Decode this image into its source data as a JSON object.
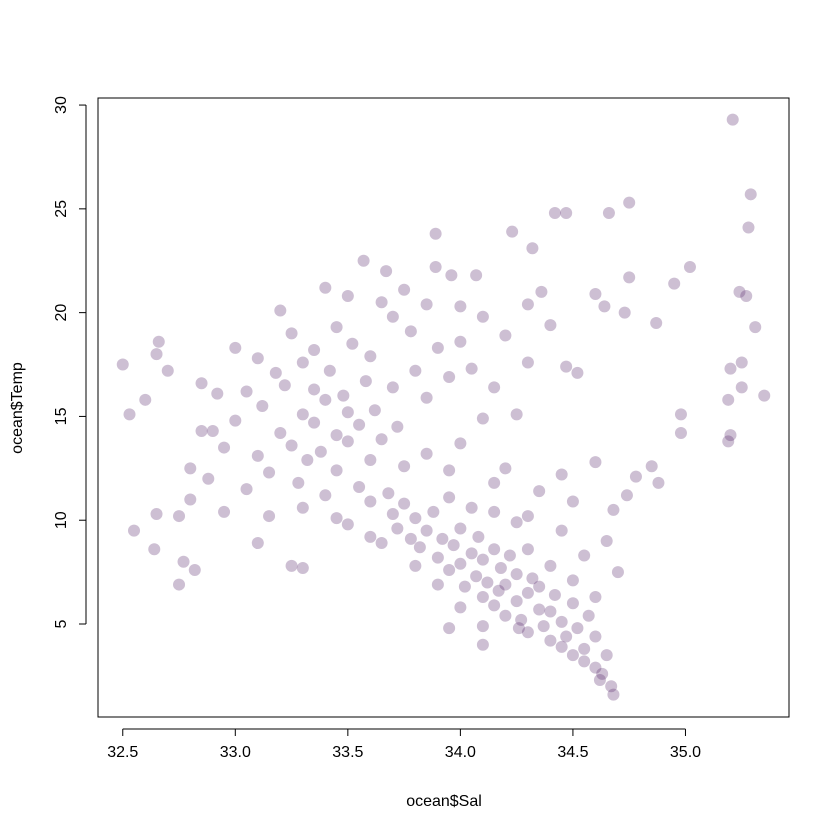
{
  "chart_data": {
    "type": "scatter",
    "x_label": "ocean$Sal",
    "y_label": "ocean$Temp",
    "color": "#5b2a6e",
    "xlim": [
      32.39,
      35.46
    ],
    "ylim": [
      0.52,
      30.34
    ],
    "xticks": [
      32.5,
      {
        "value": 33,
        "label": "33.0"
      },
      33.5,
      {
        "value": 34,
        "label": "34.0"
      },
      34.5,
      {
        "value": 35,
        "label": "35.0"
      }
    ],
    "yticks": [
      5,
      10,
      15,
      20,
      25,
      30
    ],
    "x": [
      32.5,
      32.53,
      32.55,
      32.6,
      32.64,
      32.65,
      32.66,
      32.65,
      32.7,
      32.75,
      32.77,
      32.82,
      32.85,
      32.75,
      32.8,
      32.9,
      33.0,
      33.1,
      33.2,
      33.25,
      33.3,
      33.4,
      33.5,
      33.57,
      33.67,
      33.89,
      33.89,
      33.96,
      34.07,
      34.23,
      34.32,
      34.42,
      34.47,
      34.66,
      34.75,
      34.75,
      34.36,
      34.3,
      34.6,
      34.64,
      34.73,
      34.87,
      35.02,
      34.95,
      35.21,
      35.29,
      35.28,
      35.24,
      35.27,
      35.31,
      35.35,
      35.25,
      35.2,
      35.19,
      35.25,
      35.2,
      35.19,
      34.98,
      34.98,
      34.52,
      34.47,
      34.88,
      34.85,
      34.78,
      34.74,
      34.6,
      34.68,
      34.68,
      34.67,
      34.62,
      34.55,
      33.95,
      34.1,
      34.26,
      33.0,
      33.05,
      33.1,
      33.12,
      33.15,
      33.18,
      33.2,
      33.22,
      33.25,
      33.28,
      33.3,
      33.3,
      33.32,
      33.35,
      33.35,
      33.38,
      33.4,
      33.4,
      33.42,
      33.45,
      33.45,
      33.48,
      33.5,
      33.5,
      33.52,
      33.55,
      33.55,
      33.58,
      33.6,
      33.6,
      33.62,
      33.65,
      33.68,
      33.7,
      33.72,
      33.75,
      33.78,
      33.8,
      33.85,
      33.9,
      33.95,
      34.0,
      34.05,
      34.1,
      34.15,
      33.45,
      33.35,
      33.25,
      33.1,
      32.95,
      32.92,
      32.88,
      32.85,
      32.8,
      32.95,
      33.05,
      33.15,
      33.3,
      33.45,
      33.6,
      33.7,
      33.75,
      33.65,
      33.85,
      34.0,
      34.2,
      34.3,
      34.4,
      34.25,
      34.1,
      34.0,
      34.2,
      34.35,
      34.5,
      34.45,
      34.15,
      33.95,
      33.85,
      34.05,
      34.3,
      33.7,
      33.72,
      33.75,
      33.78,
      33.8,
      33.82,
      33.85,
      33.88,
      33.9,
      33.92,
      33.95,
      33.97,
      34.0,
      34.0,
      34.02,
      34.05,
      34.07,
      34.08,
      34.1,
      34.1,
      34.12,
      34.15,
      34.15,
      34.17,
      34.18,
      34.2,
      34.2,
      34.22,
      34.25,
      34.25,
      34.27,
      34.3,
      34.3,
      34.32,
      34.35,
      34.35,
      34.37,
      34.4,
      34.4,
      34.42,
      34.45,
      34.45,
      34.47,
      34.5,
      34.5,
      34.52,
      34.55,
      34.57,
      34.6,
      34.6,
      34.63,
      34.65,
      33.65,
      33.8,
      33.9,
      34.0,
      34.1,
      33.6,
      33.5,
      34.3,
      34.4,
      34.5,
      34.6,
      34.55,
      34.65,
      34.7,
      34.45,
      34.25,
      34.15,
      33.95
    ],
    "values": [
      17.5,
      15.1,
      9.5,
      15.8,
      8.6,
      18,
      18.6,
      10.3,
      17.2,
      6.9,
      8,
      7.6,
      16.6,
      10.2,
      12.5,
      14.3,
      18.3,
      8.9,
      20.1,
      7.8,
      7.7,
      21.2,
      20.8,
      22.5,
      22,
      23.8,
      22.2,
      21.8,
      21.8,
      23.9,
      23.1,
      24.8,
      24.8,
      24.8,
      25.3,
      21.7,
      21,
      20.4,
      20.9,
      20.3,
      20,
      19.5,
      22.2,
      21.4,
      29.3,
      25.7,
      24.1,
      21,
      20.8,
      19.3,
      16,
      17.6,
      17.3,
      15.8,
      16.4,
      14.1,
      13.8,
      15.1,
      14.2,
      17.1,
      17.4,
      11.8,
      12.6,
      12.1,
      11.2,
      12.8,
      10.5,
      1.6,
      2,
      2.3,
      3.2,
      4.8,
      4,
      4.8,
      14.8,
      16.2,
      13.1,
      15.5,
      12.3,
      17.1,
      14.2,
      16.5,
      13.6,
      11.8,
      15.1,
      17.6,
      12.9,
      14.7,
      16.3,
      13.3,
      15.8,
      11.2,
      17.2,
      14.1,
      12.4,
      16,
      13.8,
      15.2,
      18.5,
      11.6,
      14.6,
      16.7,
      12.9,
      17.9,
      15.3,
      13.9,
      11.3,
      16.4,
      14.5,
      12.6,
      19.1,
      17.2,
      15.9,
      18.3,
      16.9,
      18.6,
      17.3,
      19.8,
      16.4,
      19.3,
      18.2,
      19.0,
      17.8,
      13.5,
      16.1,
      12.0,
      14.3,
      11.0,
      10.4,
      11.5,
      10.2,
      10.6,
      10.1,
      9.2,
      19.8,
      21.1,
      20.5,
      20.4,
      20.3,
      18.9,
      17.6,
      19.4,
      15.1,
      14.9,
      13.7,
      12.5,
      11.4,
      10.9,
      12.2,
      11.8,
      12.4,
      13.2,
      10.6,
      10.2,
      10.3,
      9.6,
      10.8,
      9.1,
      10.1,
      8.7,
      9.5,
      10.4,
      8.2,
      9.1,
      7.6,
      8.8,
      7.9,
      9.6,
      6.8,
      8.4,
      7.3,
      9.2,
      6.3,
      8.1,
      7.0,
      5.9,
      8.6,
      6.6,
      7.7,
      5.4,
      6.9,
      8.3,
      6.1,
      7.4,
      5.2,
      6.5,
      4.6,
      7.2,
      5.7,
      6.8,
      4.9,
      5.6,
      4.2,
      6.4,
      3.9,
      5.1,
      4.4,
      3.5,
      6.0,
      4.8,
      3.8,
      5.4,
      2.9,
      4.4,
      2.6,
      3.5,
      8.9,
      7.8,
      6.9,
      5.8,
      4.9,
      10.9,
      9.8,
      8.6,
      7.8,
      7.1,
      6.3,
      8.3,
      9.0,
      7.5,
      9.5,
      9.9,
      10.4,
      11.1
    ]
  }
}
